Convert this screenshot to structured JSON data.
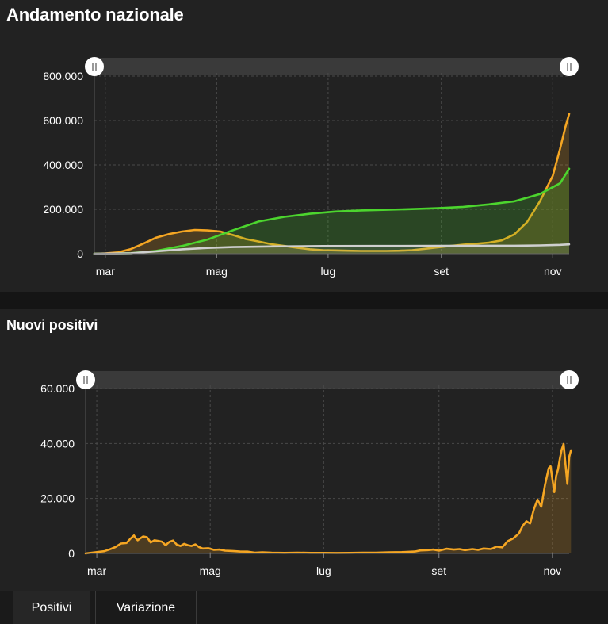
{
  "charts_header": [
    {
      "title": "Andamento nazionale"
    },
    {
      "title": "Nuovi positivi"
    }
  ],
  "tabs": [
    {
      "label": "Positivi",
      "active": true
    },
    {
      "label": "Variazione",
      "active": false
    }
  ],
  "colors": {
    "orange": "#f5a623",
    "green": "#4cd52e",
    "white": "#cfcfcf",
    "background": "#222222",
    "gridline": "#4a4a4a"
  },
  "icons": {
    "range_handle": "range-handle-icon"
  },
  "chart_data": [
    {
      "type": "area",
      "title": "Andamento nazionale",
      "xlabel": "",
      "ylabel": "",
      "ylim": [
        0,
        800000
      ],
      "yticks": [
        0,
        200000,
        400000,
        600000,
        800000
      ],
      "ytick_labels": [
        "0",
        "200.000",
        "400.000",
        "600.000",
        "800.000"
      ],
      "xticks": [
        "2020-03-01",
        "2020-05-01",
        "2020-07-01",
        "2020-09-01",
        "2020-11-01"
      ],
      "xtick_labels": [
        "mar",
        "mag",
        "lug",
        "set",
        "nov"
      ],
      "xlim": [
        "2020-02-24",
        "2020-11-10"
      ],
      "grid": true,
      "legend": false,
      "series": [
        {
          "color": "#f5a623",
          "points": [
            [
              "2020-02-24",
              0
            ],
            [
              "2020-03-01",
              1500
            ],
            [
              "2020-03-08",
              6000
            ],
            [
              "2020-03-15",
              21000
            ],
            [
              "2020-03-22",
              46000
            ],
            [
              "2020-03-29",
              73000
            ],
            [
              "2020-04-05",
              89000
            ],
            [
              "2020-04-12",
              100000
            ],
            [
              "2020-04-19",
              107000
            ],
            [
              "2020-04-26",
              105000
            ],
            [
              "2020-05-03",
              100000
            ],
            [
              "2020-05-10",
              84000
            ],
            [
              "2020-05-17",
              66000
            ],
            [
              "2020-05-24",
              55000
            ],
            [
              "2020-05-31",
              43000
            ],
            [
              "2020-06-07",
              35000
            ],
            [
              "2020-06-14",
              27000
            ],
            [
              "2020-06-21",
              20000
            ],
            [
              "2020-06-28",
              16000
            ],
            [
              "2020-07-05",
              15000
            ],
            [
              "2020-07-12",
              13500
            ],
            [
              "2020-07-19",
              12500
            ],
            [
              "2020-07-26",
              12500
            ],
            [
              "2020-08-02",
              12500
            ],
            [
              "2020-08-09",
              13500
            ],
            [
              "2020-08-16",
              16000
            ],
            [
              "2020-08-23",
              22000
            ],
            [
              "2020-08-30",
              29000
            ],
            [
              "2020-09-06",
              35000
            ],
            [
              "2020-09-13",
              41000
            ],
            [
              "2020-09-20",
              45000
            ],
            [
              "2020-09-27",
              50000
            ],
            [
              "2020-10-04",
              60000
            ],
            [
              "2020-10-11",
              87000
            ],
            [
              "2020-10-18",
              143000
            ],
            [
              "2020-10-25",
              236000
            ],
            [
              "2020-11-01",
              351000
            ],
            [
              "2020-11-05",
              472000
            ],
            [
              "2020-11-08",
              573000
            ],
            [
              "2020-11-10",
              630000
            ]
          ]
        },
        {
          "color": "#4cd52e",
          "points": [
            [
              "2020-02-24",
              0
            ],
            [
              "2020-03-01",
              100
            ],
            [
              "2020-03-15",
              2500
            ],
            [
              "2020-03-29",
              13000
            ],
            [
              "2020-04-12",
              35000
            ],
            [
              "2020-04-26",
              64000
            ],
            [
              "2020-05-10",
              106000
            ],
            [
              "2020-05-24",
              145000
            ],
            [
              "2020-06-07",
              166000
            ],
            [
              "2020-06-21",
              180000
            ],
            [
              "2020-07-05",
              190000
            ],
            [
              "2020-07-19",
              195000
            ],
            [
              "2020-08-02",
              198000
            ],
            [
              "2020-08-16",
              201000
            ],
            [
              "2020-08-30",
              205000
            ],
            [
              "2020-09-13",
              211000
            ],
            [
              "2020-09-27",
              222000
            ],
            [
              "2020-10-11",
              236000
            ],
            [
              "2020-10-25",
              269000
            ],
            [
              "2020-11-05",
              317000
            ],
            [
              "2020-11-10",
              383000
            ]
          ]
        },
        {
          "color": "#cfcfcf",
          "points": [
            [
              "2020-02-24",
              0
            ],
            [
              "2020-03-15",
              2000
            ],
            [
              "2020-03-29",
              11000
            ],
            [
              "2020-04-12",
              20000
            ],
            [
              "2020-04-26",
              26000
            ],
            [
              "2020-05-10",
              30000
            ],
            [
              "2020-05-31",
              33000
            ],
            [
              "2020-06-28",
              34700
            ],
            [
              "2020-07-26",
              35100
            ],
            [
              "2020-08-30",
              35500
            ],
            [
              "2020-09-27",
              35900
            ],
            [
              "2020-10-11",
              36200
            ],
            [
              "2020-10-25",
              37500
            ],
            [
              "2020-11-05",
              40000
            ],
            [
              "2020-11-10",
              42000
            ]
          ]
        }
      ]
    },
    {
      "type": "area",
      "title": "Nuovi positivi",
      "xlabel": "",
      "ylabel": "",
      "ylim": [
        0,
        60000
      ],
      "yticks": [
        0,
        20000,
        40000,
        60000
      ],
      "ytick_labels": [
        "0",
        "20.000",
        "40.000",
        "60.000"
      ],
      "xticks": [
        "2020-03-01",
        "2020-05-01",
        "2020-07-01",
        "2020-09-01",
        "2020-11-01"
      ],
      "xtick_labels": [
        "mar",
        "mag",
        "lug",
        "set",
        "nov"
      ],
      "xlim": [
        "2020-02-24",
        "2020-11-10"
      ],
      "grid": true,
      "legend": false,
      "series": [
        {
          "color": "#f5a623",
          "points": [
            [
              "2020-02-24",
              0
            ],
            [
              "2020-03-01",
              500
            ],
            [
              "2020-03-05",
              800
            ],
            [
              "2020-03-08",
              1500
            ],
            [
              "2020-03-11",
              2300
            ],
            [
              "2020-03-14",
              3600
            ],
            [
              "2020-03-17",
              3800
            ],
            [
              "2020-03-19",
              5300
            ],
            [
              "2020-03-21",
              6550
            ],
            [
              "2020-03-22",
              5500
            ],
            [
              "2020-03-23",
              4800
            ],
            [
              "2020-03-24",
              5300
            ],
            [
              "2020-03-26",
              6200
            ],
            [
              "2020-03-28",
              5900
            ],
            [
              "2020-03-30",
              4000
            ],
            [
              "2020-04-01",
              4800
            ],
            [
              "2020-04-03",
              4600
            ],
            [
              "2020-04-05",
              4300
            ],
            [
              "2020-04-07",
              3000
            ],
            [
              "2020-04-09",
              4200
            ],
            [
              "2020-04-11",
              4700
            ],
            [
              "2020-04-13",
              3200
            ],
            [
              "2020-04-15",
              2700
            ],
            [
              "2020-04-17",
              3500
            ],
            [
              "2020-04-19",
              3000
            ],
            [
              "2020-04-21",
              2700
            ],
            [
              "2020-04-23",
              3300
            ],
            [
              "2020-04-25",
              2300
            ],
            [
              "2020-04-27",
              1800
            ],
            [
              "2020-04-30",
              1900
            ],
            [
              "2020-05-03",
              1300
            ],
            [
              "2020-05-06",
              1400
            ],
            [
              "2020-05-09",
              1000
            ],
            [
              "2020-05-13",
              900
            ],
            [
              "2020-05-17",
              700
            ],
            [
              "2020-05-21",
              650
            ],
            [
              "2020-05-25",
              300
            ],
            [
              "2020-05-29",
              400
            ],
            [
              "2020-06-03",
              250
            ],
            [
              "2020-06-10",
              200
            ],
            [
              "2020-06-17",
              300
            ],
            [
              "2020-06-24",
              200
            ],
            [
              "2020-07-01",
              200
            ],
            [
              "2020-07-08",
              180
            ],
            [
              "2020-07-15",
              200
            ],
            [
              "2020-07-22",
              250
            ],
            [
              "2020-07-29",
              300
            ],
            [
              "2020-08-05",
              400
            ],
            [
              "2020-08-12",
              500
            ],
            [
              "2020-08-19",
              700
            ],
            [
              "2020-08-22",
              1100
            ],
            [
              "2020-08-26",
              1200
            ],
            [
              "2020-08-29",
              1400
            ],
            [
              "2020-09-01",
              1000
            ],
            [
              "2020-09-05",
              1700
            ],
            [
              "2020-09-09",
              1400
            ],
            [
              "2020-09-12",
              1600
            ],
            [
              "2020-09-15",
              1200
            ],
            [
              "2020-09-19",
              1600
            ],
            [
              "2020-09-22",
              1300
            ],
            [
              "2020-09-25",
              1800
            ],
            [
              "2020-09-29",
              1600
            ],
            [
              "2020-10-02",
              2500
            ],
            [
              "2020-10-05",
              2200
            ],
            [
              "2020-10-08",
              4500
            ],
            [
              "2020-10-11",
              5500
            ],
            [
              "2020-10-14",
              7300
            ],
            [
              "2020-10-16",
              10000
            ],
            [
              "2020-10-18",
              11700
            ],
            [
              "2020-10-20",
              10900
            ],
            [
              "2020-10-22",
              16000
            ],
            [
              "2020-10-24",
              19600
            ],
            [
              "2020-10-26",
              17000
            ],
            [
              "2020-10-28",
              24900
            ],
            [
              "2020-10-30",
              31000
            ],
            [
              "2020-10-31",
              31700
            ],
            [
              "2020-11-02",
              22300
            ],
            [
              "2020-11-03",
              28200
            ],
            [
              "2020-11-04",
              30500
            ],
            [
              "2020-11-05",
              34500
            ],
            [
              "2020-11-06",
              37800
            ],
            [
              "2020-11-07",
              39800
            ],
            [
              "2020-11-08",
              32600
            ],
            [
              "2020-11-09",
              25300
            ],
            [
              "2020-11-10",
              35100
            ],
            [
              "2020-11-11",
              37500
            ]
          ]
        }
      ]
    }
  ]
}
